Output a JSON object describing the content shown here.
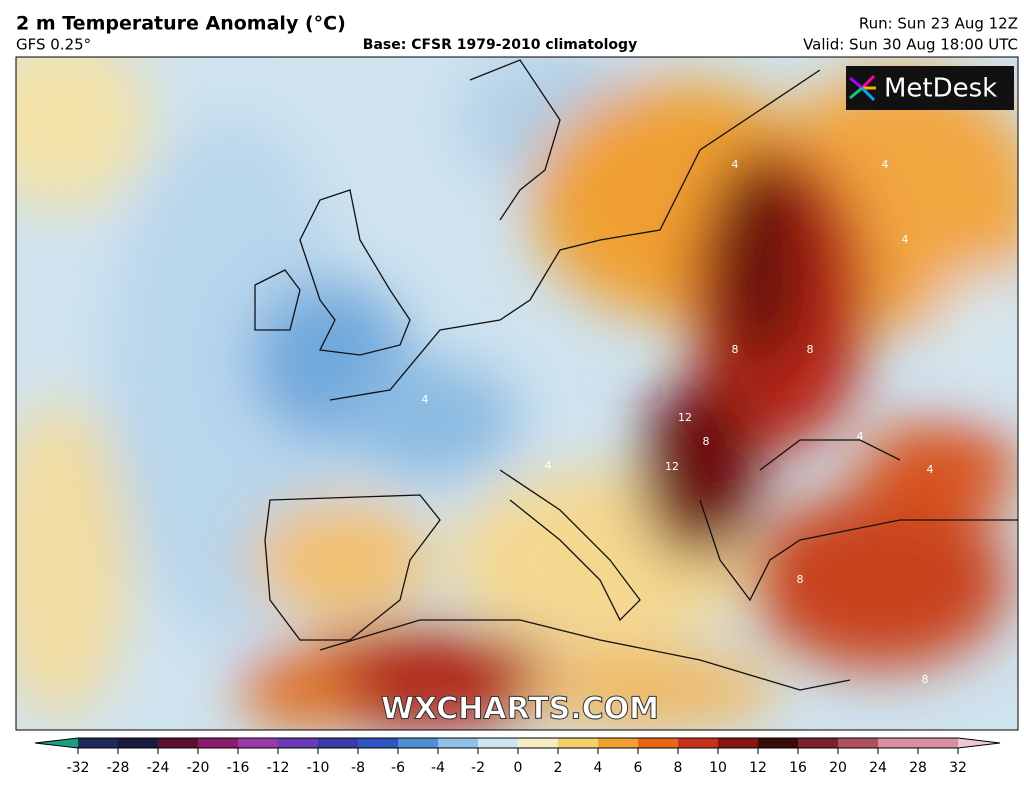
{
  "header": {
    "title": "2 m Temperature Anomaly (°C)",
    "model": "GFS 0.25°",
    "base": "Base: CFSR 1979-2010 climatology",
    "run": "Run: Sun 23 Aug 12Z",
    "valid": "Valid: Sun 30 Aug 18:00 UTC"
  },
  "logo": "MetDesk",
  "watermark": "WXCHARTS.COM",
  "contour_labels": [
    4,
    4,
    4,
    4,
    8,
    8,
    12,
    12,
    8,
    4,
    4,
    4,
    8,
    8
  ],
  "colorbar": {
    "ticks": [
      -32,
      -28,
      -24,
      -20,
      -16,
      -12,
      -10,
      -8,
      -6,
      -4,
      -2,
      0,
      2,
      4,
      6,
      8,
      10,
      12,
      16,
      20,
      24,
      28,
      32
    ],
    "colors": [
      "#1a9e80",
      "#1d2a5a",
      "#1a1a40",
      "#5a1030",
      "#8a1c6e",
      "#9a3aa8",
      "#6a3ab8",
      "#3a3aa8",
      "#2f55c0",
      "#4f8fd6",
      "#8fc0e8",
      "#cfe4f2",
      "#f6eec0",
      "#f5cf6a",
      "#f0a030",
      "#e8661a",
      "#c8321a",
      "#8a1410",
      "#3a0c08",
      "#7a2030",
      "#b05060",
      "#d890a0",
      "#f0c8d0"
    ]
  }
}
